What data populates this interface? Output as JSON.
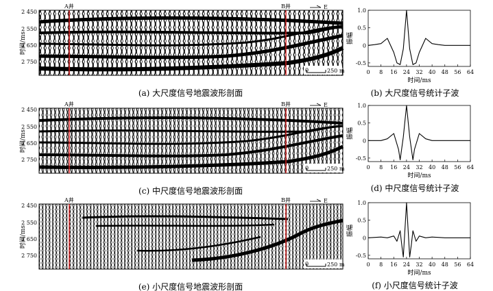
{
  "seismic_panels": [
    {
      "caption": "(a) 大尺度信号地震波形剖面",
      "well_a": "A井",
      "well_b": "B井",
      "direction_label": "E",
      "scale_label": "250 m",
      "scale_zero": "0",
      "y_axis_label": "时间/ms",
      "y_ticks": [
        "2 450",
        "2 550",
        "2 650",
        "2 750"
      ]
    },
    {
      "caption": "(c) 中尺度信号地震波形剖面",
      "well_a": "A井",
      "well_b": "B井",
      "direction_label": "E",
      "scale_label": "250 m",
      "scale_zero": "0",
      "y_axis_label": "时间/ms",
      "y_ticks": [
        "2 450",
        "2 550",
        "2 650",
        "2 750"
      ]
    },
    {
      "caption": "(e) 小尺度信号地震波形剖面",
      "well_a": "A井",
      "well_b": "B井",
      "direction_label": "E",
      "scale_label": "250 m",
      "scale_zero": "0",
      "y_axis_label": "时间/ms",
      "y_ticks": [
        "2 450",
        "2 550",
        "2 650",
        "2 750"
      ]
    }
  ],
  "wavelet_panels": [
    {
      "caption": "(b) 大尺度信号统计子波"
    },
    {
      "caption": "(d) 中尺度信号统计子波"
    },
    {
      "caption": "(f) 小尺度信号统计子波"
    }
  ],
  "wavelet_axes": {
    "xlabel": "时间/ms",
    "ylabel": "振幅",
    "x_ticks": [
      "0",
      "8",
      "16",
      "24",
      "32",
      "40",
      "48",
      "56",
      "64"
    ],
    "y_ticks": [
      "1.0",
      "0.5",
      "0",
      "-0.5"
    ]
  },
  "chart_data": [
    {
      "type": "line",
      "panel": "(b)",
      "x_range": [
        0,
        64
      ],
      "y_range": [
        -0.6,
        1.0
      ],
      "x": [
        0,
        4,
        8,
        12,
        16,
        18,
        20,
        22,
        24,
        26,
        28,
        30,
        32,
        36,
        40,
        44,
        48,
        56,
        64
      ],
      "y": [
        0,
        0.02,
        0.05,
        0.2,
        -0.2,
        -0.5,
        -0.55,
        -0.1,
        1.0,
        -0.1,
        -0.55,
        -0.5,
        -0.2,
        0.2,
        0.05,
        0.02,
        0,
        0,
        0
      ]
    },
    {
      "type": "line",
      "panel": "(d)",
      "x_range": [
        0,
        64
      ],
      "y_range": [
        -0.6,
        1.0
      ],
      "x": [
        0,
        8,
        12,
        16,
        19,
        20,
        22,
        24,
        26,
        28,
        29,
        32,
        36,
        40,
        48,
        56,
        64
      ],
      "y": [
        0,
        0,
        0.05,
        0.2,
        -0.25,
        -0.55,
        0.1,
        1.0,
        0.1,
        -0.55,
        -0.25,
        0.2,
        0.05,
        0,
        0,
        0,
        0
      ]
    },
    {
      "type": "line",
      "panel": "(f)",
      "x_range": [
        0,
        64
      ],
      "y_range": [
        -0.6,
        1.0
      ],
      "x": [
        0,
        8,
        12,
        16,
        18,
        20,
        21,
        22,
        24,
        26,
        27,
        28,
        30,
        32,
        36,
        40,
        48,
        56,
        64
      ],
      "y": [
        0,
        0.02,
        0,
        0.05,
        -0.1,
        0.2,
        -0.2,
        -0.55,
        1.0,
        -0.55,
        -0.2,
        0.2,
        -0.1,
        0.05,
        0,
        0.02,
        0,
        0,
        0
      ]
    }
  ]
}
